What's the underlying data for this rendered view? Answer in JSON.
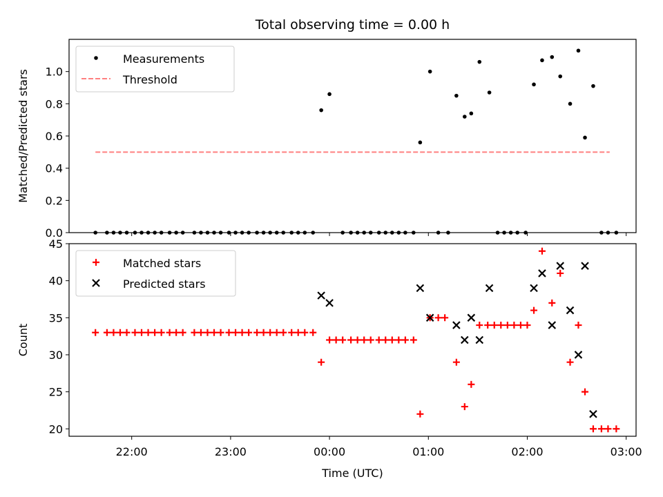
{
  "chart_data": [
    {
      "type": "scatter",
      "title": "Total observing time = 0.00 h",
      "xlabel": "",
      "ylabel": "Matched/Predicted stars",
      "xlim": [
        "21:22",
        "03:06"
      ],
      "ylim": [
        0,
        1.2
      ],
      "yticks": [
        "0.0",
        "0.2",
        "0.4",
        "0.6",
        "0.8",
        "1.0"
      ],
      "legend": {
        "position": "upper left",
        "entries": [
          "Measurements",
          "Threshold"
        ]
      },
      "threshold": {
        "name": "Threshold",
        "value": 0.5,
        "x_start": "21:38",
        "x_end": "02:50",
        "color": "#ff7f7f",
        "style": "dashed"
      },
      "series": [
        {
          "name": "Measurements",
          "color": "#000000",
          "marker": "dot",
          "points": [
            [
              "21:38",
              0
            ],
            [
              "21:45",
              0
            ],
            [
              "21:49",
              0
            ],
            [
              "21:53",
              0
            ],
            [
              "21:57",
              0
            ],
            [
              "22:02",
              0
            ],
            [
              "22:06",
              0
            ],
            [
              "22:10",
              0
            ],
            [
              "22:14",
              0
            ],
            [
              "22:18",
              0
            ],
            [
              "22:23",
              0
            ],
            [
              "22:27",
              0
            ],
            [
              "22:31",
              0
            ],
            [
              "22:38",
              0
            ],
            [
              "22:42",
              0
            ],
            [
              "22:46",
              0
            ],
            [
              "22:50",
              0
            ],
            [
              "22:54",
              0
            ],
            [
              "22:59",
              0
            ],
            [
              "23:03",
              0
            ],
            [
              "23:07",
              0
            ],
            [
              "23:11",
              0
            ],
            [
              "23:16",
              0
            ],
            [
              "23:20",
              0
            ],
            [
              "23:24",
              0
            ],
            [
              "23:28",
              0
            ],
            [
              "23:32",
              0
            ],
            [
              "23:37",
              0
            ],
            [
              "23:41",
              0
            ],
            [
              "23:45",
              0
            ],
            [
              "23:50",
              0
            ],
            [
              "23:55",
              0.76
            ],
            [
              "00:00",
              0.86
            ],
            [
              "00:08",
              0
            ],
            [
              "00:13",
              0
            ],
            [
              "00:17",
              0
            ],
            [
              "00:21",
              0
            ],
            [
              "00:25",
              0
            ],
            [
              "00:30",
              0
            ],
            [
              "00:34",
              0
            ],
            [
              "00:38",
              0
            ],
            [
              "00:42",
              0
            ],
            [
              "00:46",
              0
            ],
            [
              "00:51",
              0
            ],
            [
              "00:55",
              0.56
            ],
            [
              "01:01",
              1.0
            ],
            [
              "01:06",
              0
            ],
            [
              "01:12",
              0
            ],
            [
              "01:17",
              0.85
            ],
            [
              "01:22",
              0.72
            ],
            [
              "01:26",
              0.74
            ],
            [
              "01:31",
              1.06
            ],
            [
              "01:37",
              0.87
            ],
            [
              "01:42",
              0
            ],
            [
              "01:46",
              0
            ],
            [
              "01:50",
              0
            ],
            [
              "01:54",
              0
            ],
            [
              "01:59",
              0
            ],
            [
              "02:04",
              0.92
            ],
            [
              "02:09",
              1.07
            ],
            [
              "02:15",
              1.09
            ],
            [
              "02:20",
              0.97
            ],
            [
              "02:26",
              0.8
            ],
            [
              "02:31",
              1.13
            ],
            [
              "02:35",
              0.59
            ],
            [
              "02:40",
              0.91
            ],
            [
              "02:45",
              0
            ],
            [
              "02:49",
              0
            ],
            [
              "02:54",
              0
            ]
          ]
        }
      ]
    },
    {
      "type": "scatter",
      "title": "",
      "xlabel": "Time (UTC)",
      "ylabel": "Count",
      "xlim": [
        "21:22",
        "03:06"
      ],
      "ylim": [
        19,
        45
      ],
      "xticks": [
        "22:00",
        "23:00",
        "00:00",
        "01:00",
        "02:00",
        "03:00"
      ],
      "yticks": [
        "20",
        "25",
        "30",
        "35",
        "40",
        "45"
      ],
      "legend": {
        "position": "upper left",
        "entries": [
          "Matched stars",
          "Predicted stars"
        ]
      },
      "series": [
        {
          "name": "Matched stars",
          "color": "#ff0000",
          "marker": "plus",
          "points": [
            [
              "21:38",
              33
            ],
            [
              "21:45",
              33
            ],
            [
              "21:49",
              33
            ],
            [
              "21:53",
              33
            ],
            [
              "21:57",
              33
            ],
            [
              "22:02",
              33
            ],
            [
              "22:06",
              33
            ],
            [
              "22:10",
              33
            ],
            [
              "22:14",
              33
            ],
            [
              "22:18",
              33
            ],
            [
              "22:23",
              33
            ],
            [
              "22:27",
              33
            ],
            [
              "22:31",
              33
            ],
            [
              "22:38",
              33
            ],
            [
              "22:42",
              33
            ],
            [
              "22:46",
              33
            ],
            [
              "22:50",
              33
            ],
            [
              "22:54",
              33
            ],
            [
              "22:59",
              33
            ],
            [
              "23:03",
              33
            ],
            [
              "23:07",
              33
            ],
            [
              "23:11",
              33
            ],
            [
              "23:16",
              33
            ],
            [
              "23:20",
              33
            ],
            [
              "23:24",
              33
            ],
            [
              "23:28",
              33
            ],
            [
              "23:32",
              33
            ],
            [
              "23:37",
              33
            ],
            [
              "23:41",
              33
            ],
            [
              "23:45",
              33
            ],
            [
              "23:50",
              33
            ],
            [
              "23:55",
              29
            ],
            [
              "00:00",
              32
            ],
            [
              "00:04",
              32
            ],
            [
              "00:08",
              32
            ],
            [
              "00:13",
              32
            ],
            [
              "00:17",
              32
            ],
            [
              "00:21",
              32
            ],
            [
              "00:25",
              32
            ],
            [
              "00:30",
              32
            ],
            [
              "00:34",
              32
            ],
            [
              "00:38",
              32
            ],
            [
              "00:42",
              32
            ],
            [
              "00:46",
              32
            ],
            [
              "00:51",
              32
            ],
            [
              "00:55",
              22
            ],
            [
              "01:01",
              35
            ],
            [
              "01:06",
              35
            ],
            [
              "01:10",
              35
            ],
            [
              "01:17",
              29
            ],
            [
              "01:22",
              23
            ],
            [
              "01:26",
              26
            ],
            [
              "01:31",
              34
            ],
            [
              "01:36",
              34
            ],
            [
              "01:40",
              34
            ],
            [
              "01:44",
              34
            ],
            [
              "01:48",
              34
            ],
            [
              "01:52",
              34
            ],
            [
              "01:56",
              34
            ],
            [
              "02:00",
              34
            ],
            [
              "02:04",
              36
            ],
            [
              "02:09",
              44
            ],
            [
              "02:15",
              37
            ],
            [
              "02:20",
              41
            ],
            [
              "02:26",
              29
            ],
            [
              "02:31",
              34
            ],
            [
              "02:35",
              25
            ],
            [
              "02:40",
              20
            ],
            [
              "02:45",
              20
            ],
            [
              "02:49",
              20
            ],
            [
              "02:54",
              20
            ]
          ]
        },
        {
          "name": "Predicted stars",
          "color": "#000000",
          "marker": "x",
          "points": [
            [
              "23:55",
              38
            ],
            [
              "00:00",
              37
            ],
            [
              "00:55",
              39
            ],
            [
              "01:01",
              35
            ],
            [
              "01:17",
              34
            ],
            [
              "01:22",
              32
            ],
            [
              "01:26",
              35
            ],
            [
              "01:31",
              32
            ],
            [
              "01:37",
              39
            ],
            [
              "02:04",
              39
            ],
            [
              "02:09",
              41
            ],
            [
              "02:15",
              34
            ],
            [
              "02:20",
              42
            ],
            [
              "02:26",
              36
            ],
            [
              "02:31",
              30
            ],
            [
              "02:35",
              42
            ],
            [
              "02:40",
              22
            ]
          ]
        }
      ]
    }
  ]
}
